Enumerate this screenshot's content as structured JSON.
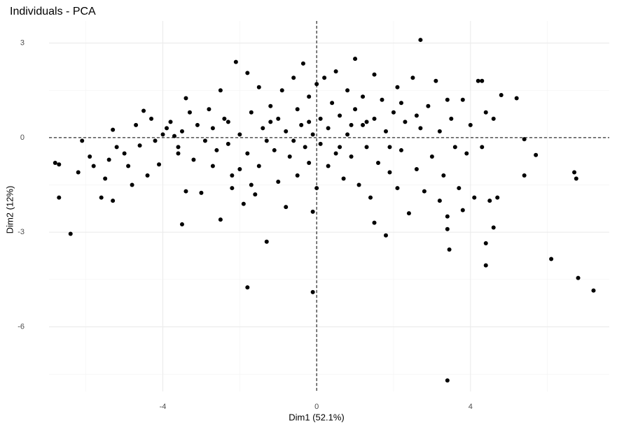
{
  "chart_data": {
    "type": "scatter",
    "title": "Individuals - PCA",
    "x_label": "Dim1 (52.1%)",
    "y_label": "Dim2 (12%)",
    "color": "#000000",
    "xlim": [
      -6.96,
      7.61
    ],
    "ylim": [
      -8.05,
      3.7
    ],
    "xticks": [
      -4,
      0,
      4
    ],
    "yticks": [
      3,
      0,
      -3,
      -6
    ],
    "x_minor": [
      -6,
      -2,
      2,
      6
    ],
    "y_minor": [
      1.5,
      -1.5,
      -4.5,
      -7.5
    ],
    "grid": true,
    "hline": 0,
    "vline": 0,
    "x": [
      -6.8,
      -6.7,
      -6.7,
      -6.4,
      -1.8,
      -0.1,
      -1.3,
      3.4,
      6.1,
      6.8,
      7.2,
      6.7,
      6.75,
      4.4,
      4.4,
      4.6,
      5.4,
      5.7,
      5.4,
      4.8,
      5.2,
      4.3,
      -3.5,
      -0.1,
      -6.1,
      -6.2,
      -5.9,
      -5.8,
      -5.6,
      -5.5,
      -5.4,
      -5.3,
      -5.3,
      -5.2,
      -5.0,
      -4.9,
      -4.8,
      -4.7,
      -4.6,
      -4.5,
      -4.4,
      -4.3,
      -4.2,
      -4.1,
      -4.0,
      -3.9,
      -3.8,
      -3.7,
      -3.6,
      -3.5,
      -3.4,
      -3.4,
      -3.3,
      -3.2,
      -3.1,
      -3.0,
      -2.9,
      -2.8,
      -2.7,
      -2.6,
      -2.5,
      -2.5,
      -2.4,
      -2.3,
      -2.2,
      -2.1,
      -2.0,
      -2.0,
      -1.9,
      -1.8,
      -1.8,
      -1.7,
      -1.6,
      -1.5,
      -1.5,
      -1.4,
      -1.3,
      -1.2,
      -1.1,
      -1.0,
      -1.0,
      -0.9,
      -0.8,
      -0.8,
      -0.7,
      -0.6,
      -0.5,
      -0.5,
      -0.4,
      -0.35,
      -0.3,
      -0.2,
      -0.2,
      -0.1,
      0.0,
      0.0,
      0.1,
      0.1,
      0.2,
      0.3,
      0.3,
      0.4,
      0.5,
      0.5,
      0.6,
      0.7,
      0.8,
      0.8,
      0.9,
      1.0,
      1.0,
      1.1,
      1.2,
      1.2,
      1.3,
      1.4,
      1.5,
      1.5,
      1.5,
      1.6,
      1.7,
      1.8,
      1.8,
      1.9,
      2.0,
      2.1,
      2.1,
      2.2,
      2.3,
      2.4,
      2.5,
      2.6,
      2.7,
      2.7,
      2.8,
      2.9,
      3.0,
      3.1,
      3.2,
      3.2,
      3.3,
      3.4,
      3.4,
      3.5,
      3.6,
      3.7,
      3.8,
      3.8,
      3.9,
      4.0,
      4.1,
      4.2,
      4.3,
      4.4,
      4.5,
      4.6,
      4.7,
      3.4,
      3.45,
      -2.2,
      -1.7,
      -3.6,
      -2.7,
      -2.3,
      0.6,
      1.3,
      2.2,
      -0.6,
      -1.2,
      0.9,
      2.6,
      1.9,
      -0.2
    ],
    "values": [
      -0.8,
      -0.85,
      -1.9,
      -3.05,
      -4.75,
      -4.9,
      -3.3,
      -7.7,
      -3.85,
      -4.45,
      -4.85,
      -1.1,
      -1.3,
      -3.35,
      -4.05,
      -2.85,
      -1.2,
      -0.55,
      -0.05,
      1.35,
      1.25,
      1.8,
      -2.75,
      -2.35,
      -0.1,
      -1.1,
      -0.6,
      -0.9,
      -1.9,
      -1.3,
      -0.7,
      0.25,
      -2.0,
      -0.3,
      -0.5,
      -0.9,
      -1.5,
      0.4,
      -0.25,
      0.85,
      -1.2,
      0.6,
      -0.1,
      -0.85,
      0.1,
      0.3,
      0.5,
      0.05,
      -0.3,
      0.2,
      1.25,
      -1.7,
      0.8,
      -0.7,
      0.4,
      -1.75,
      -0.1,
      0.9,
      0.3,
      -0.4,
      1.5,
      -2.6,
      0.6,
      -0.2,
      -1.6,
      2.4,
      0.1,
      -1.0,
      -2.1,
      2.05,
      -0.5,
      0.8,
      -1.8,
      1.6,
      -0.9,
      0.3,
      -0.1,
      1.0,
      -0.4,
      0.6,
      -1.4,
      1.5,
      0.2,
      -2.2,
      -0.6,
      1.9,
      0.9,
      -1.2,
      0.4,
      2.35,
      -0.3,
      1.3,
      -0.8,
      0.1,
      1.7,
      -1.6,
      0.6,
      -0.2,
      1.9,
      0.3,
      -0.9,
      1.1,
      -0.5,
      2.1,
      0.7,
      -1.3,
      1.5,
      0.1,
      -0.6,
      2.5,
      0.9,
      -1.5,
      0.4,
      1.3,
      -0.3,
      -1.9,
      2.0,
      0.6,
      -2.7,
      -0.8,
      1.2,
      0.2,
      -3.1,
      -1.1,
      0.8,
      1.6,
      -1.6,
      -0.4,
      0.5,
      -2.4,
      1.9,
      -1.0,
      0.3,
      3.1,
      -1.7,
      1.0,
      -0.6,
      1.8,
      -2.0,
      0.2,
      -1.2,
      1.2,
      -2.5,
      0.6,
      -0.3,
      -1.6,
      1.2,
      -2.3,
      -0.5,
      0.4,
      -1.9,
      1.8,
      -0.3,
      0.8,
      -2.0,
      0.6,
      -1.9,
      -2.9,
      -3.55,
      -1.2,
      -1.5,
      -0.5,
      -0.9,
      0.5,
      -0.3,
      0.5,
      1.1,
      -0.1,
      0.5,
      0.4,
      0.7,
      -0.3,
      0.5
    ]
  }
}
